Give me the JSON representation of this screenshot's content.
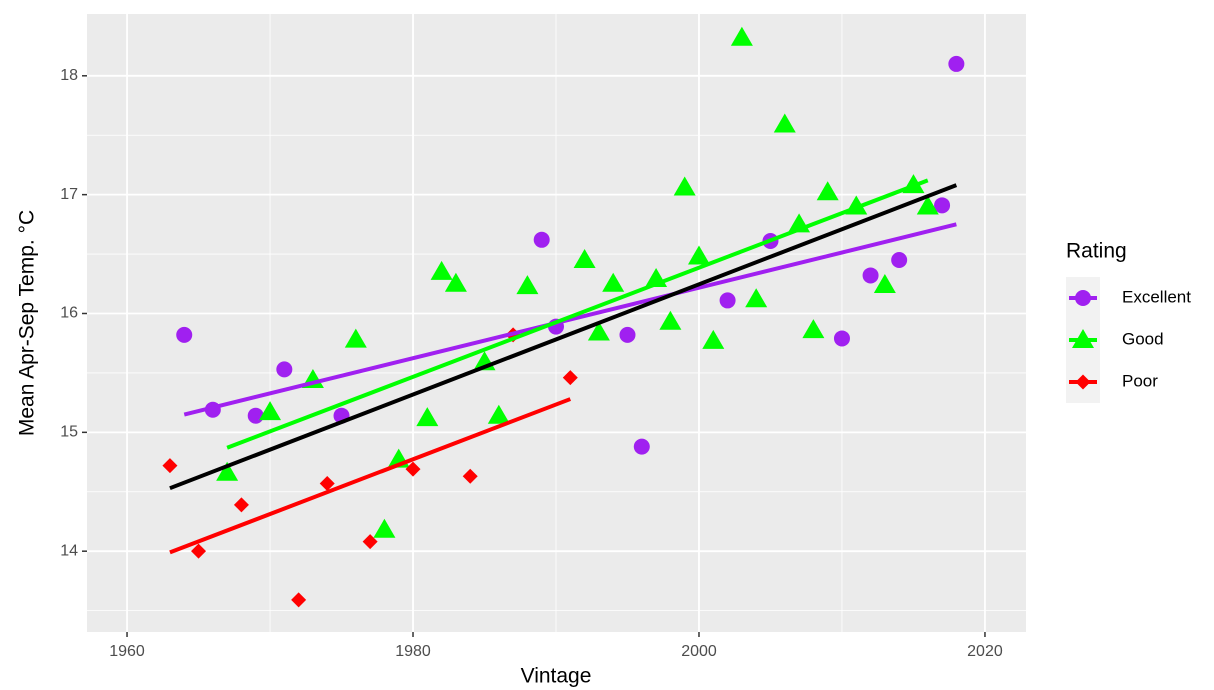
{
  "chart_data": {
    "type": "scatter",
    "x_label": "Vintage",
    "y_label": "Mean Apr-Sep Temp.  °C",
    "legend_title": "Rating",
    "xlim": [
      1957.2,
      2022.87
    ],
    "ylim": [
      13.32,
      18.52
    ],
    "xticks": [
      1960,
      1980,
      2000,
      2020
    ],
    "yticks": [
      14,
      15,
      16,
      17,
      18
    ],
    "x_minor_ticks": [
      1970,
      1990,
      2010
    ],
    "y_minor_ticks": [
      13.5,
      14.5,
      15.5,
      16.5,
      17.5
    ],
    "grid": true,
    "legend": "right",
    "series": [
      {
        "name": "Excellent",
        "color": "#a020f0",
        "shape": "circle",
        "x": [
          1964,
          1966,
          1969,
          1971,
          1975,
          1989,
          1990,
          1995,
          1996,
          2002,
          2005,
          2010,
          2012,
          2014,
          2017,
          2018
        ],
        "values": [
          15.82,
          15.19,
          15.14,
          15.53,
          15.14,
          16.62,
          15.89,
          15.82,
          14.88,
          16.11,
          16.61,
          15.79,
          16.32,
          16.45,
          16.91,
          18.1
        ],
        "fit": {
          "x": [
            1964,
            2018
          ],
          "values": [
            15.15,
            16.75
          ]
        }
      },
      {
        "name": "Good",
        "color": "#00ff00",
        "shape": "triangle",
        "x": [
          1967,
          1970,
          1973,
          1976,
          1978,
          1979,
          1981,
          1982,
          1983,
          1985,
          1986,
          1988,
          1992,
          1993,
          1994,
          1997,
          1998,
          1999,
          2000,
          2001,
          2003,
          2004,
          2006,
          2007,
          2008,
          2009,
          2011,
          2013,
          2015,
          2016
        ],
        "values": [
          14.66,
          15.17,
          15.44,
          15.78,
          14.18,
          14.77,
          15.12,
          16.35,
          16.25,
          15.59,
          15.14,
          16.23,
          16.45,
          15.84,
          16.25,
          16.29,
          15.93,
          17.06,
          16.48,
          15.77,
          18.32,
          16.12,
          17.59,
          16.75,
          15.86,
          17.02,
          16.9,
          16.24,
          17.08,
          16.9
        ],
        "fit": {
          "x": [
            1967,
            2016
          ],
          "values": [
            14.87,
            17.12
          ]
        }
      },
      {
        "name": "Poor",
        "color": "#ff0000",
        "shape": "diamond",
        "x": [
          1963,
          1965,
          1968,
          1972,
          1974,
          1977,
          1980,
          1984,
          1987,
          1991
        ],
        "values": [
          14.72,
          14.0,
          14.39,
          13.59,
          14.57,
          14.08,
          14.69,
          14.63,
          15.82,
          15.46
        ],
        "fit": {
          "x": [
            1963,
            1991
          ],
          "values": [
            13.99,
            15.28
          ]
        }
      }
    ],
    "overall_fit": {
      "color": "#000000",
      "x": [
        1963,
        2018
      ],
      "values": [
        14.53,
        17.08
      ]
    }
  }
}
